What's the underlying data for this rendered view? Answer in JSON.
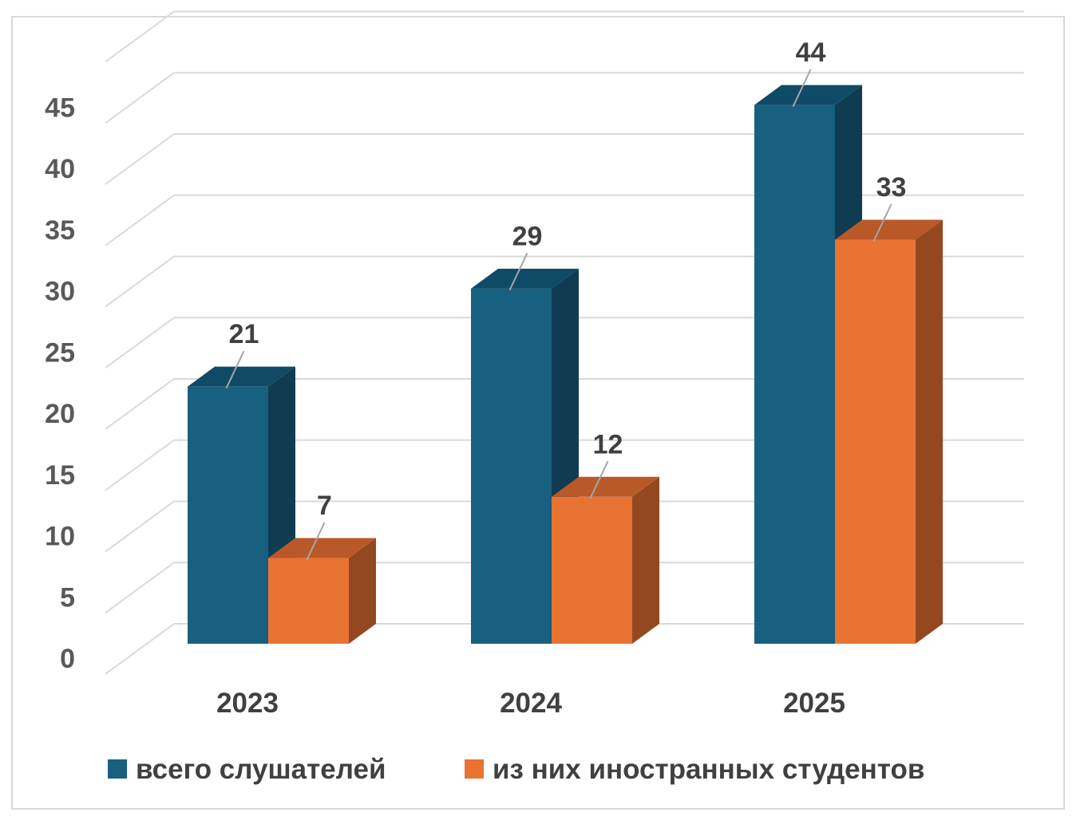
{
  "chart_data": {
    "type": "bar",
    "categories": [
      "2023",
      "2024",
      "2025"
    ],
    "series": [
      {
        "name": "всего слушателей",
        "values": [
          21,
          29,
          44
        ],
        "color": "#17607f"
      },
      {
        "name": "из них иностранных студентов",
        "values": [
          7,
          12,
          33
        ],
        "color": "#e87332"
      }
    ],
    "ylim": [
      0,
      45
    ],
    "yticks": [
      "0",
      "5",
      "10",
      "15",
      "20",
      "25",
      "30",
      "35",
      "40",
      "45"
    ],
    "grid": true,
    "legend": "bottom"
  }
}
